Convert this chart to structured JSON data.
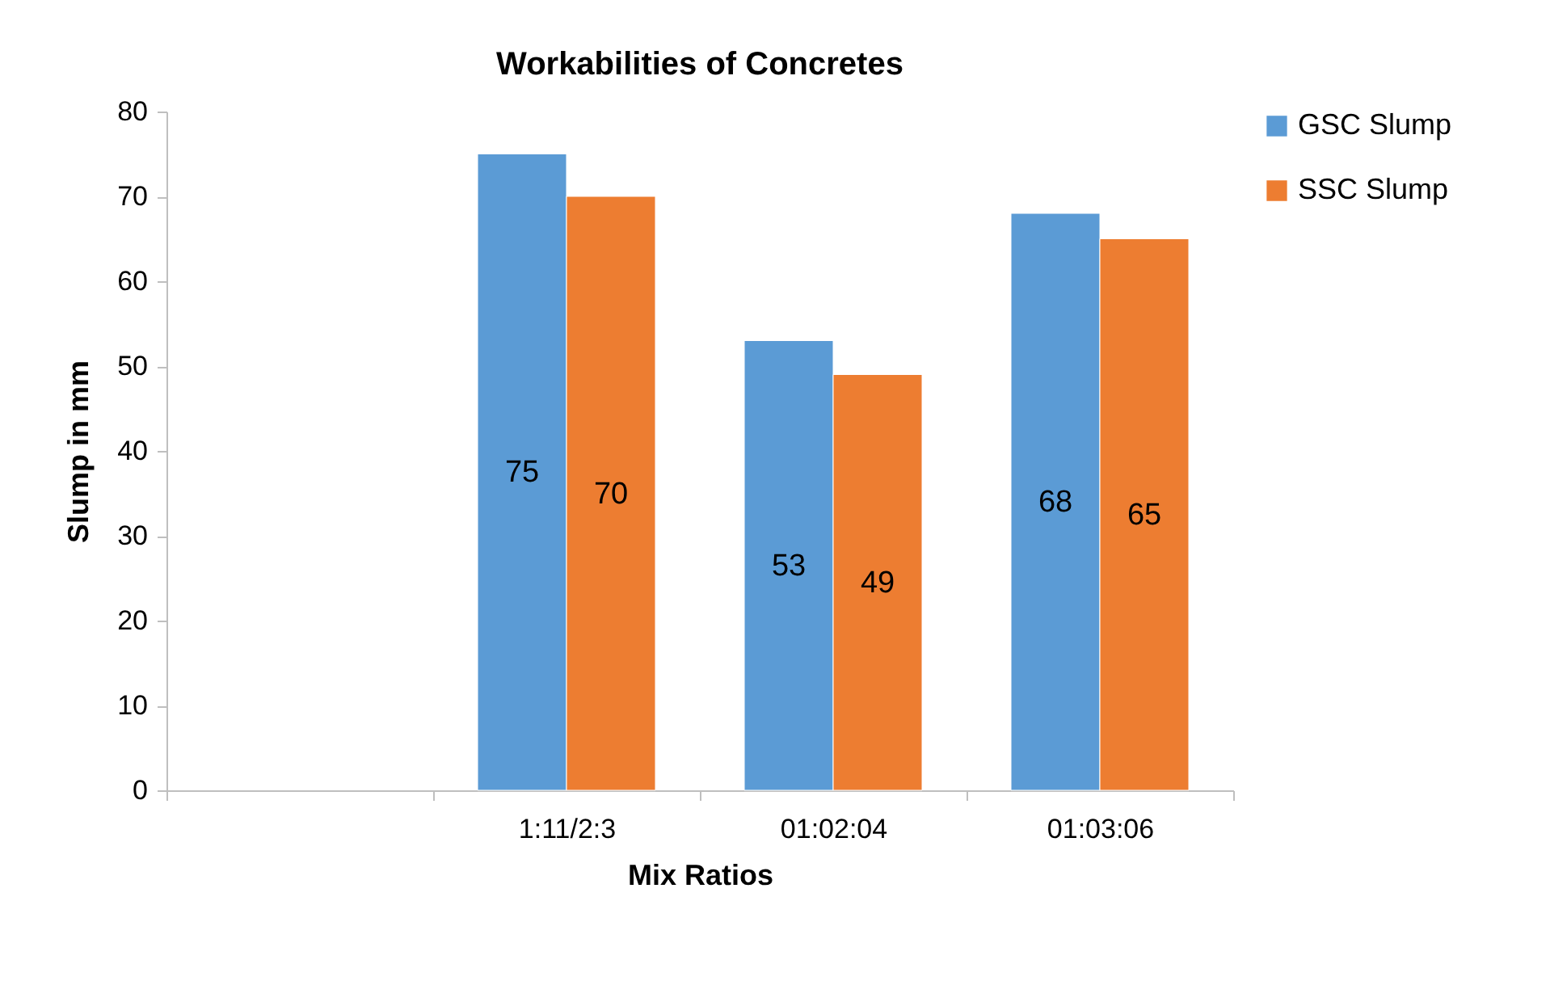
{
  "chart_data": {
    "type": "bar",
    "title": "Workabilities of Concretes",
    "xlabel": "Mix Ratios",
    "ylabel": "Slump in mm",
    "categories": [
      null,
      "1:11/2:3",
      "01:02:04",
      "01:03:06"
    ],
    "series": [
      {
        "name": "GSC Slump",
        "color": "#5b9bd5",
        "values": [
          null,
          75,
          53,
          68
        ]
      },
      {
        "name": "SSC Slump",
        "color": "#ed7d31",
        "values": [
          null,
          70,
          49,
          65
        ]
      }
    ],
    "ylim": [
      0,
      80
    ],
    "yticks": [
      0,
      10,
      20,
      30,
      40,
      50,
      60,
      70,
      80
    ],
    "grid": false,
    "legend": "right",
    "data_labels": true
  }
}
